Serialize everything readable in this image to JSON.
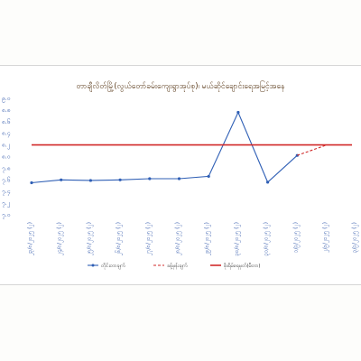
{
  "chart_data": {
    "type": "line",
    "title": "တာချီလိတ်မြို့(လွယ်တော်ခမ်းကျေးရွာအုပ်စု)၊ မယ်ဆိုင်ချောင်းရေအမြင့်အနေ",
    "xlabel": "",
    "ylabel": "",
    "y_ticks": [
      "၉.၀",
      "၈.၈",
      "၈.၆",
      "၈.၄",
      "၈.၂",
      "၈.၀",
      "၇.၈",
      "၇.၆",
      "၇.၄",
      "၇.၂",
      "၇.၀"
    ],
    "ylim": [
      7.0,
      9.0
    ],
    "categories": [
      "၂၃/၈/၂၀၂၅ (၂)",
      "၂၄/၈/၂၀၂၅ (၂)",
      "၂၅/၈/၂၀၂၅ (၂)",
      "၂၆/၈/၂၀၂၅ (၂)",
      "၂၇/၈/၂၀၂၅ (၂)",
      "၂၈/၈/၂၀၂၅ (၂)",
      "၂၉/၈/၂၀၂၅ (၂)",
      "၃၀/၈/၂၀၂၅ (၂)",
      "၃၁/၈/၂၀၂၅ (၂)",
      "၁/၉/၂၀၂၅ (၂)",
      "၂/၉/၂၀၂၅ (၂)",
      "၃/၉/၂၀၂၅ (၂)"
    ],
    "series": [
      {
        "name": "တိုင်းတာချက်",
        "values": [
          7.55,
          7.6,
          7.59,
          7.6,
          7.62,
          7.62,
          7.66,
          8.76,
          7.56,
          8.02,
          null,
          null
        ],
        "color": "#2f5fb5",
        "style": "solid",
        "marker": true
      },
      {
        "name": "ခန့်မှန်းချက်",
        "values": [
          null,
          null,
          null,
          null,
          null,
          null,
          null,
          null,
          null,
          8.02,
          8.2,
          null
        ],
        "color": "#d12a2a",
        "style": "dashed",
        "marker": false
      },
      {
        "name": "စိုးရိမ်ရေမှတ်(မီတာ)",
        "values": [
          8.2,
          8.2,
          8.2,
          8.2,
          8.2,
          8.2,
          8.2,
          8.2,
          8.2,
          8.2,
          8.2,
          null
        ],
        "color": "#d12a2a",
        "style": "solid",
        "marker": false
      }
    ],
    "grid": false,
    "legend_position": "bottom"
  }
}
